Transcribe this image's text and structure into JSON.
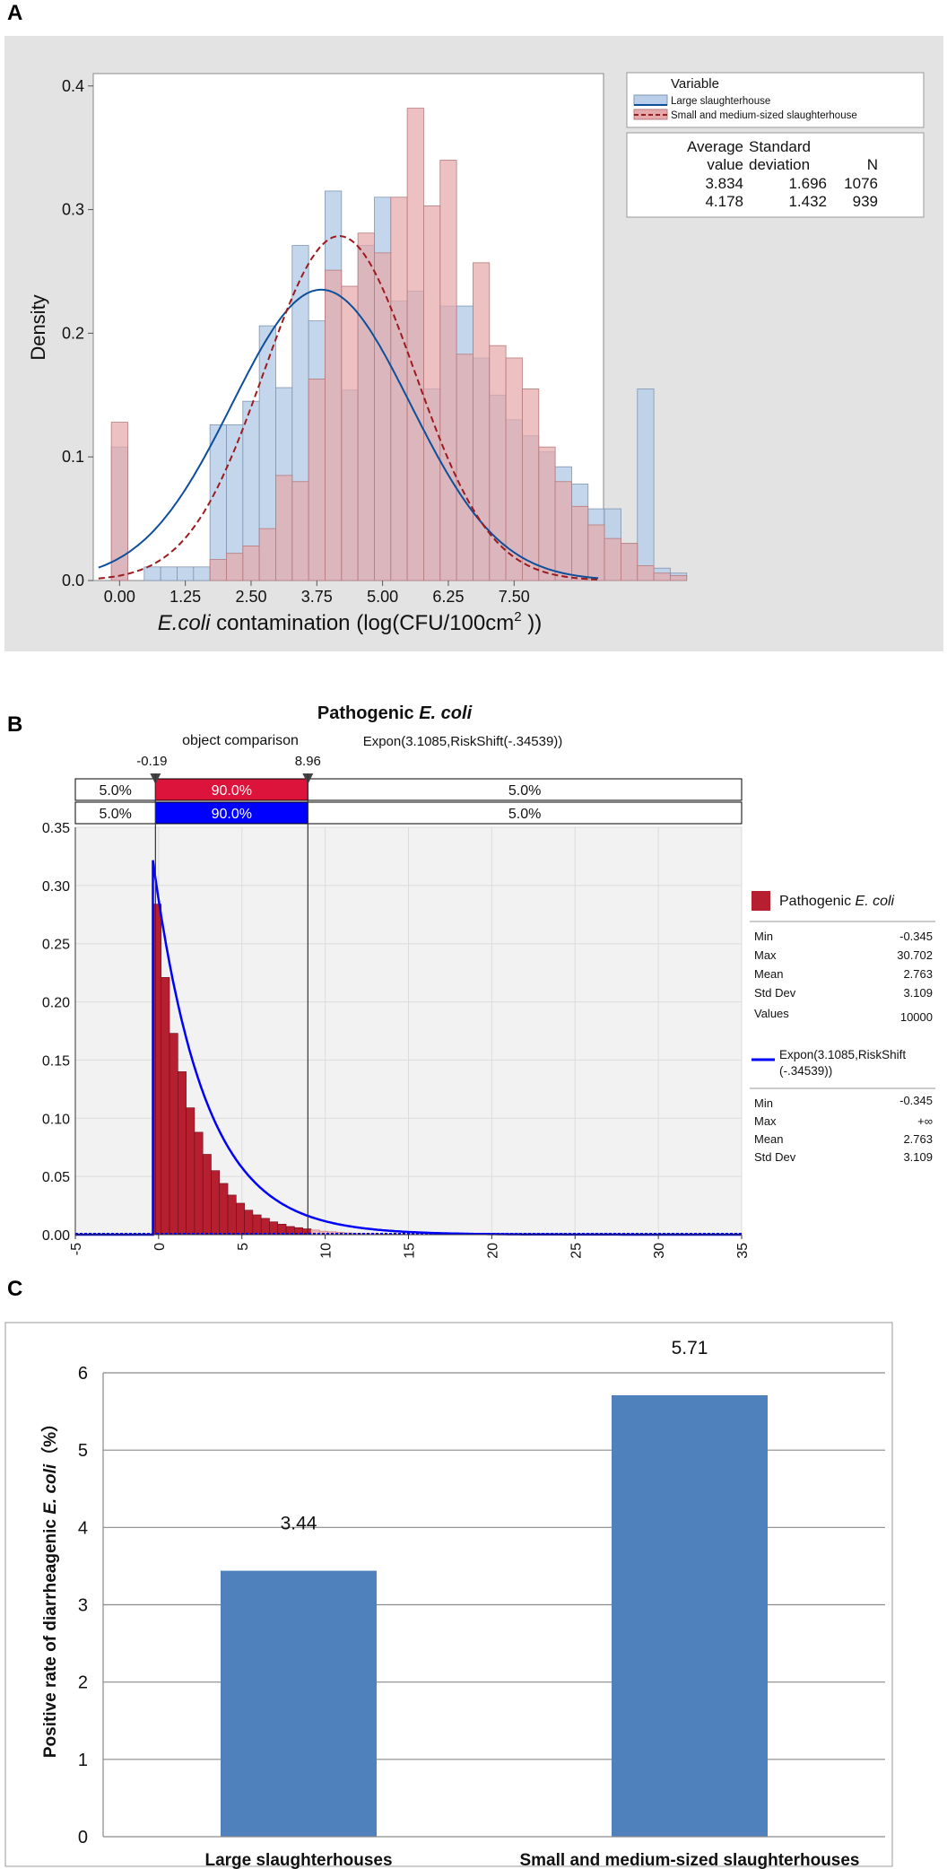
{
  "panel_labels": {
    "a": "A",
    "b": "B",
    "c": "C"
  },
  "colors": {
    "panel_a_bg": "#e3e3e3",
    "large_fill": "#b9cfe9",
    "large_line": "#0d4f9a",
    "small_fill": "#e6a9ab",
    "small_line": "#9b1b1e",
    "b_red": "#b51f30",
    "b_red_bar": "#dc143c",
    "b_blue": "#0000ff",
    "c_bar": "#4f81bd"
  },
  "chart_data": [
    {
      "type": "bar",
      "subtype": "histogram-with-normal-fit",
      "title": "",
      "xlabel_italic": "E.coli",
      "xlabel_rest": " contamination (log(CFU/100cm",
      "xlabel_sup": "2",
      "xlabel_end": " ))",
      "ylabel": "Density",
      "xlim": [
        -0.5,
        9.2
      ],
      "ylim": [
        0,
        0.41
      ],
      "xticks": [
        0.0,
        1.25,
        2.5,
        3.75,
        5.0,
        6.25,
        7.5
      ],
      "xtick_labels": [
        "0.00",
        "1.25",
        "2.50",
        "3.75",
        "5.00",
        "6.25",
        "7.50"
      ],
      "yticks": [
        0.0,
        0.1,
        0.2,
        0.3,
        0.4
      ],
      "ytick_labels": [
        "0.0",
        "0.1",
        "0.2",
        "0.3",
        "0.4"
      ],
      "bin_width": 0.3125,
      "bin_start": -0.15625,
      "series": [
        {
          "name": "Large slaughterhouse",
          "values": [
            0.108,
            0.0,
            0.011,
            0.011,
            0.011,
            0.011,
            0.126,
            0.126,
            0.145,
            0.206,
            0.156,
            0.271,
            0.21,
            0.315,
            0.154,
            0.271,
            0.31,
            0.226,
            0.234,
            0.155,
            0.222,
            0.222,
            0.18,
            0.15,
            0.13,
            0.117,
            0.104,
            0.092,
            0.078,
            0.058,
            0.058,
            0.03,
            0.155,
            0.01,
            0.006,
            0.0
          ],
          "mean": 3.834,
          "sd": 1.696,
          "n": 1076
        },
        {
          "name": "Small and medium-sized slaughterhouse",
          "values": [
            0.128,
            0.0,
            0.0,
            0.0,
            0.0,
            0.0,
            0.017,
            0.022,
            0.028,
            0.042,
            0.085,
            0.08,
            0.163,
            0.251,
            0.238,
            0.281,
            0.265,
            0.31,
            0.382,
            0.303,
            0.34,
            0.183,
            0.257,
            0.19,
            0.18,
            0.155,
            0.108,
            0.08,
            0.06,
            0.045,
            0.034,
            0.03,
            0.012,
            0.006,
            0.004,
            0.0
          ],
          "mean": 4.178,
          "sd": 1.432,
          "n": 939
        }
      ],
      "legend": {
        "title": "Variable",
        "stats_header": [
          "Average",
          "Standard",
          "",
          "value",
          "deviation",
          "N"
        ],
        "rows": [
          [
            "3.834",
            "1.696",
            "1076"
          ],
          [
            "4.178",
            "1.432",
            "939"
          ]
        ]
      },
      "legend_position": "right"
    },
    {
      "type": "bar",
      "subtype": "risk-distribution",
      "title_prefix": "Pathogenic ",
      "title_italic": "E. coli",
      "object_comparison": "object comparison",
      "fit_label": "Expon(3.1085,RiskShift(-.34539))",
      "marker_left": "-0.19",
      "marker_right": "8.96",
      "marker_left_value": -0.19,
      "marker_right_value": 8.96,
      "band_rows": [
        [
          "5.0%",
          "90.0%",
          "5.0%"
        ],
        [
          "5.0%",
          "90.0%",
          "5.0%"
        ]
      ],
      "xlim": [
        -5,
        35
      ],
      "ylim": [
        0,
        0.35
      ],
      "xticks": [
        -5,
        0,
        5,
        10,
        15,
        20,
        25,
        30,
        35
      ],
      "xtick_labels": [
        "-5",
        "0",
        "5",
        "10",
        "15",
        "20",
        "25",
        "30",
        "35"
      ],
      "yticks": [
        0.0,
        0.05,
        0.1,
        0.15,
        0.2,
        0.25,
        0.3,
        0.35
      ],
      "ytick_labels": [
        "0.00",
        "0.05",
        "0.10",
        "0.15",
        "0.20",
        "0.25",
        "0.30",
        "0.35"
      ],
      "hist_start": -0.345,
      "hist_bin_width": 0.5,
      "hist_values": [
        0.284,
        0.221,
        0.173,
        0.14,
        0.109,
        0.088,
        0.069,
        0.055,
        0.044,
        0.034,
        0.027,
        0.021,
        0.017,
        0.014,
        0.011,
        0.009,
        0.007,
        0.006,
        0.005,
        0.004,
        0.003,
        0.0025,
        0.002,
        0.0015,
        0.001,
        0.001,
        0.0008,
        0.0006,
        0.0005,
        0.0004,
        0.0003,
        0.0002
      ],
      "fit": {
        "rate_mean": 3.1085,
        "shift": -0.34539
      },
      "legend_sim_name_prefix": "Pathogenic ",
      "legend_sim_name_italic": "E. coli",
      "sim_stats": [
        [
          "Min",
          "-0.345"
        ],
        [
          "Max",
          "30.702"
        ],
        [
          "Mean",
          "2.763"
        ],
        [
          "Std Dev",
          "3.109"
        ],
        [
          "Values",
          "10000"
        ]
      ],
      "legend_fit_name_line1": "Expon(3.1085,RiskShift",
      "legend_fit_name_line2": "(-.34539))",
      "fit_stats": [
        [
          "Min",
          "-0.345"
        ],
        [
          "Max",
          "+∞"
        ],
        [
          "Mean",
          "2.763"
        ],
        [
          "Std Dev",
          "3.109"
        ]
      ]
    },
    {
      "type": "bar",
      "categories": [
        "Large slaughterhouses",
        "Small and medium-sized slaughterhouses"
      ],
      "values": [
        3.44,
        5.71
      ],
      "data_labels": [
        "3.44",
        "5.71"
      ],
      "ylabel_prefix": "Positive rate of  diarrheagenic ",
      "ylabel_italic": "E. coli",
      "ylabel_suffix": "（%）",
      "ylim": [
        0,
        6
      ],
      "yticks": [
        0,
        1,
        2,
        3,
        4,
        5,
        6
      ],
      "ytick_labels": [
        "0",
        "1",
        "2",
        "3",
        "4",
        "5",
        "6"
      ]
    }
  ]
}
